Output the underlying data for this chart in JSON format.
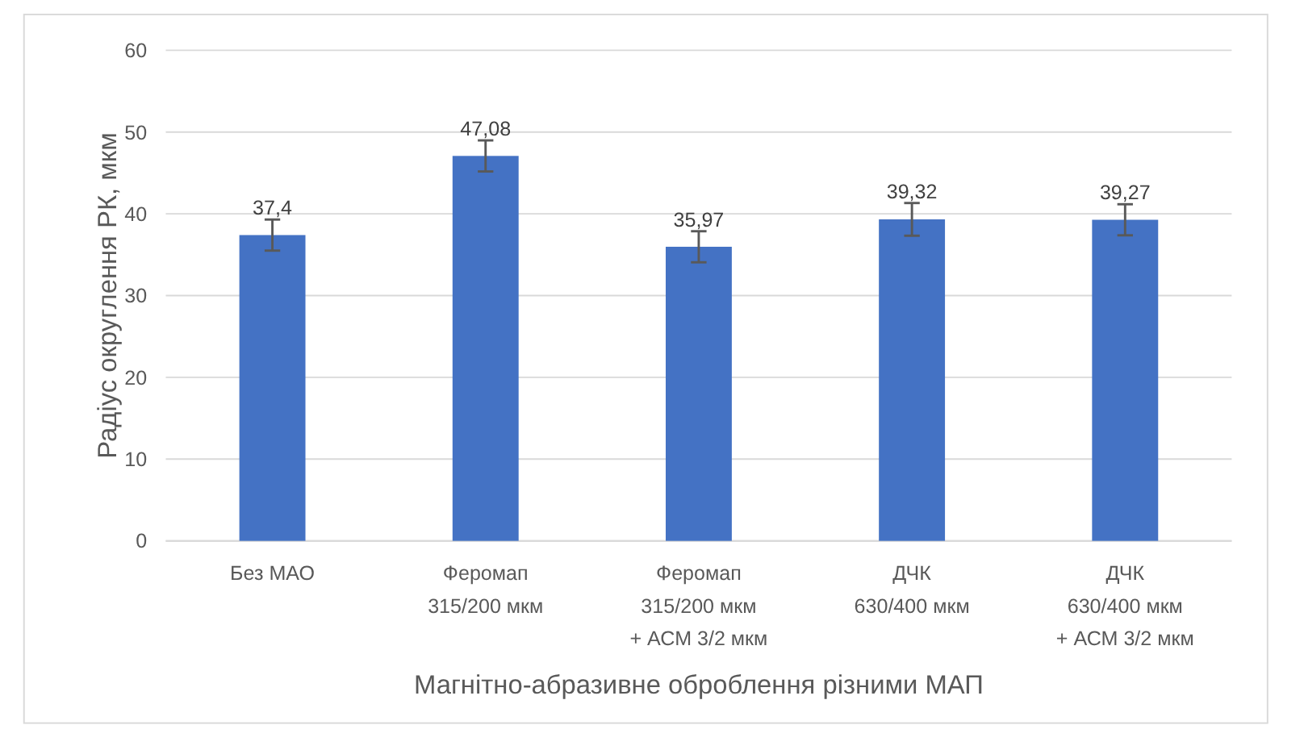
{
  "chart_data": {
    "type": "bar",
    "xlabel": "Магнітно-абразивне оброблення різними МАП",
    "ylabel": "Радіус округлення РК, мкм",
    "categories": [
      "Без МАО",
      "Феромап\n315/200 мкм",
      "Феромап\n315/200 мкм\n+ АСМ 3/2 мкм",
      "ДЧК\n630/400 мкм",
      "ДЧК\n630/400 мкм\n+ АСМ 3/2 мкм"
    ],
    "values": [
      37.4,
      47.08,
      35.97,
      39.32,
      39.27
    ],
    "errors": [
      1.9,
      1.9,
      1.9,
      2,
      1.9
    ],
    "color": "#4472c4",
    "value_labels": [
      "37,4",
      "47,08",
      "35,97",
      "39,32",
      "39,27"
    ],
    "ylim": [
      0,
      60
    ],
    "yticks": [
      0,
      10,
      20,
      30,
      40,
      50,
      60
    ],
    "grid": "y"
  }
}
